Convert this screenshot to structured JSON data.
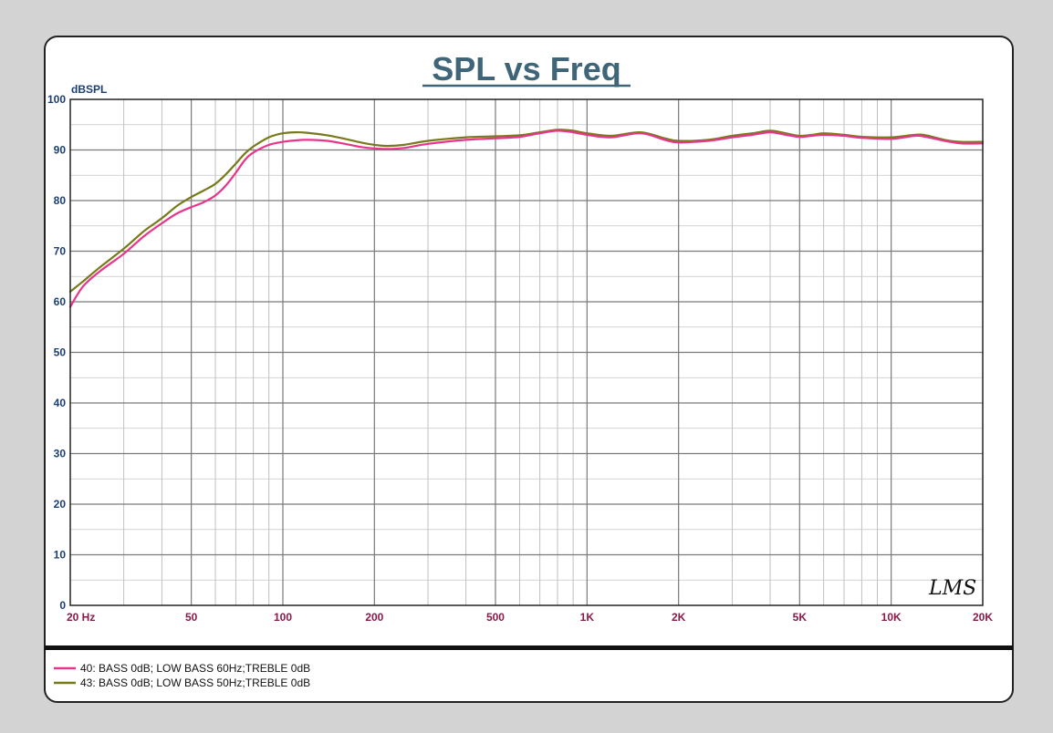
{
  "chart_data": {
    "type": "line",
    "title": "SPL vs Freq",
    "ylabel": "dBSPL",
    "xlabel": "",
    "x_scale": "log",
    "xlim": [
      20,
      20000
    ],
    "ylim": [
      0,
      100
    ],
    "yticks": [
      0,
      10,
      20,
      30,
      40,
      50,
      60,
      70,
      80,
      90,
      100
    ],
    "xticks": [
      {
        "value": 20,
        "label": "20  Hz"
      },
      {
        "value": 50,
        "label": "50"
      },
      {
        "value": 100,
        "label": "100"
      },
      {
        "value": 200,
        "label": "200"
      },
      {
        "value": 500,
        "label": "500"
      },
      {
        "value": 1000,
        "label": "1K"
      },
      {
        "value": 2000,
        "label": "2K"
      },
      {
        "value": 5000,
        "label": "5K"
      },
      {
        "value": 10000,
        "label": "10K"
      },
      {
        "value": 20000,
        "label": "20K"
      }
    ],
    "grid": true,
    "legend_position": "bottom-left",
    "logo": "LMS",
    "series": [
      {
        "name": "40: BASS 0dB; LOW BASS 60Hz;TREBLE 0dB",
        "color": "#e8348a",
        "points": [
          [
            20,
            59.0
          ],
          [
            22,
            63.0
          ],
          [
            25,
            66.0
          ],
          [
            30,
            69.5
          ],
          [
            35,
            73.0
          ],
          [
            40,
            75.5
          ],
          [
            45,
            77.5
          ],
          [
            50,
            78.7
          ],
          [
            55,
            79.7
          ],
          [
            60,
            81.0
          ],
          [
            65,
            83.0
          ],
          [
            70,
            85.5
          ],
          [
            75,
            88.0
          ],
          [
            80,
            89.5
          ],
          [
            90,
            91.0
          ],
          [
            100,
            91.6
          ],
          [
            110,
            91.9
          ],
          [
            120,
            92.0
          ],
          [
            140,
            91.8
          ],
          [
            160,
            91.2
          ],
          [
            180,
            90.6
          ],
          [
            200,
            90.3
          ],
          [
            220,
            90.2
          ],
          [
            250,
            90.4
          ],
          [
            300,
            91.2
          ],
          [
            400,
            92.0
          ],
          [
            500,
            92.3
          ],
          [
            600,
            92.6
          ],
          [
            700,
            93.3
          ],
          [
            800,
            93.8
          ],
          [
            900,
            93.5
          ],
          [
            1000,
            93.0
          ],
          [
            1200,
            92.5
          ],
          [
            1500,
            93.3
          ],
          [
            1800,
            92.0
          ],
          [
            2000,
            91.5
          ],
          [
            2500,
            91.8
          ],
          [
            3000,
            92.5
          ],
          [
            3500,
            93.0
          ],
          [
            4000,
            93.5
          ],
          [
            4500,
            93.0
          ],
          [
            5000,
            92.6
          ],
          [
            5500,
            92.8
          ],
          [
            6000,
            93.0
          ],
          [
            7000,
            92.8
          ],
          [
            8000,
            92.4
          ],
          [
            10000,
            92.2
          ],
          [
            12000,
            92.8
          ],
          [
            13000,
            92.6
          ],
          [
            15000,
            91.8
          ],
          [
            17000,
            91.3
          ],
          [
            20000,
            91.3
          ]
        ]
      },
      {
        "name": "43: BASS 0dB; LOW BASS 50Hz;TREBLE 0dB",
        "color": "#777a1a",
        "points": [
          [
            20,
            62.0
          ],
          [
            22,
            64.0
          ],
          [
            25,
            66.8
          ],
          [
            30,
            70.5
          ],
          [
            35,
            74.0
          ],
          [
            40,
            76.5
          ],
          [
            45,
            79.0
          ],
          [
            50,
            80.7
          ],
          [
            55,
            82.0
          ],
          [
            60,
            83.3
          ],
          [
            65,
            85.2
          ],
          [
            70,
            87.3
          ],
          [
            75,
            89.3
          ],
          [
            80,
            90.7
          ],
          [
            90,
            92.5
          ],
          [
            100,
            93.3
          ],
          [
            110,
            93.5
          ],
          [
            120,
            93.4
          ],
          [
            140,
            92.9
          ],
          [
            160,
            92.2
          ],
          [
            180,
            91.5
          ],
          [
            200,
            91.0
          ],
          [
            220,
            90.8
          ],
          [
            250,
            91.0
          ],
          [
            300,
            91.8
          ],
          [
            400,
            92.5
          ],
          [
            500,
            92.7
          ],
          [
            600,
            92.9
          ],
          [
            700,
            93.5
          ],
          [
            800,
            94.0
          ],
          [
            900,
            93.8
          ],
          [
            1000,
            93.3
          ],
          [
            1200,
            92.8
          ],
          [
            1500,
            93.5
          ],
          [
            1800,
            92.3
          ],
          [
            2000,
            91.8
          ],
          [
            2500,
            92.0
          ],
          [
            3000,
            92.8
          ],
          [
            3500,
            93.3
          ],
          [
            4000,
            93.8
          ],
          [
            4500,
            93.3
          ],
          [
            5000,
            92.8
          ],
          [
            5500,
            93.0
          ],
          [
            6000,
            93.3
          ],
          [
            7000,
            93.0
          ],
          [
            8000,
            92.6
          ],
          [
            10000,
            92.5
          ],
          [
            12000,
            93.0
          ],
          [
            13000,
            92.9
          ],
          [
            15000,
            92.0
          ],
          [
            17000,
            91.6
          ],
          [
            20000,
            91.6
          ]
        ]
      }
    ]
  }
}
